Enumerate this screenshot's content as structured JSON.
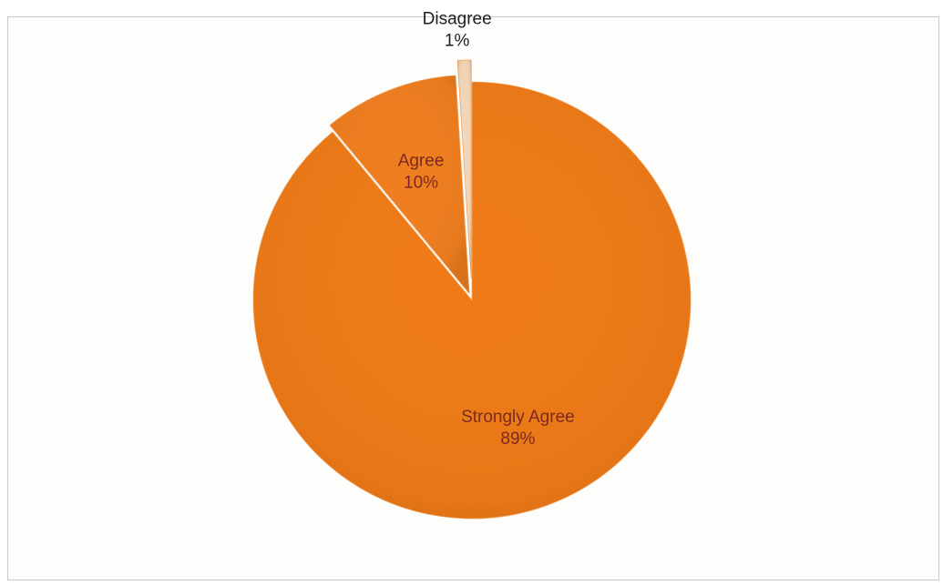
{
  "chart_data": {
    "type": "pie",
    "categories": [
      "Strongly Agree",
      "Agree",
      "Disagree"
    ],
    "values": [
      89,
      10,
      1
    ],
    "labels": [
      "89%",
      "10%",
      "1%"
    ],
    "colors": [
      "#ee7a17",
      "#ef7e1f",
      "#f4d7b8"
    ],
    "label_colors": [
      "#7a2a22",
      "#7a2a22",
      "#1e1e1e"
    ],
    "title": "",
    "legend": "none"
  }
}
